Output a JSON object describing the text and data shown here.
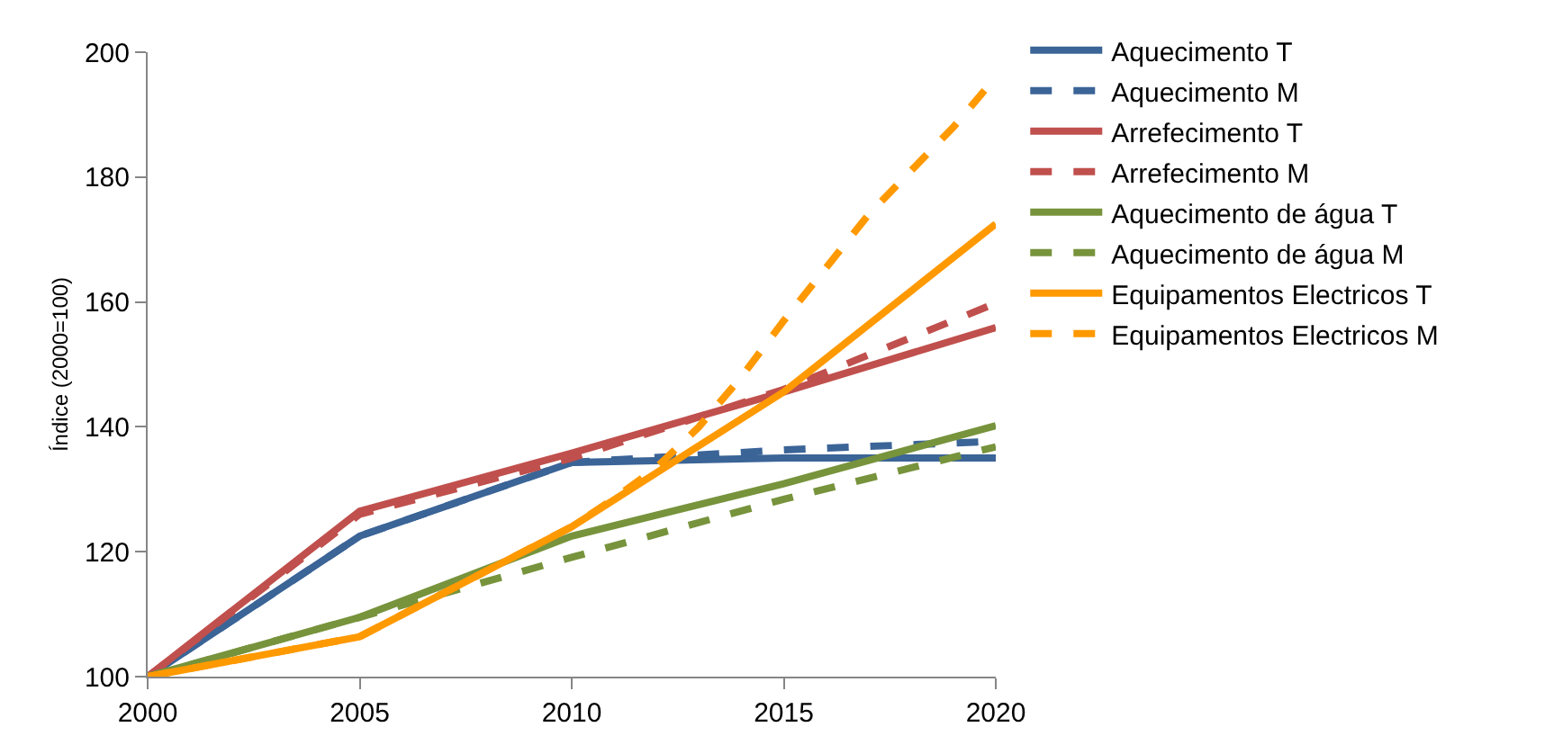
{
  "chart_data": {
    "type": "line",
    "ylabel": "Índice (2000=100)",
    "xlim": [
      2000,
      2020
    ],
    "xticks": [
      2000,
      2005,
      2010,
      2015,
      2020
    ],
    "ylim": [
      100,
      200
    ],
    "yticks": [
      100,
      120,
      140,
      160,
      180,
      200
    ],
    "grid": false,
    "legend": "right",
    "marker": "none",
    "series": [
      {
        "name": "Aquecimento T",
        "color": "#3b6497",
        "line_style": "solid",
        "x": [
          2000,
          2005,
          2010,
          2015,
          2020
        ],
        "values": [
          100,
          122.5,
          134.3,
          135,
          135
        ]
      },
      {
        "name": "Aquecimento M",
        "color": "#3b6497",
        "line_style": "dashed",
        "x": [
          2000,
          2005,
          2010,
          2015,
          2020
        ],
        "values": [
          100,
          122.5,
          134.3,
          136.3,
          137.7
        ]
      },
      {
        "name": "Arrefecimento T",
        "color": "#c0504d",
        "line_style": "solid",
        "x": [
          2000,
          2005,
          2010,
          2015,
          2020
        ],
        "values": [
          100,
          126.5,
          135.8,
          145.6,
          155.9
        ]
      },
      {
        "name": "Arrefecimento M",
        "color": "#c0504d",
        "line_style": "dashed",
        "x": [
          2000,
          2005,
          2010,
          2015,
          2020
        ],
        "values": [
          100,
          126,
          135,
          146,
          159.8
        ]
      },
      {
        "name": "Aquecimento de água T",
        "color": "#77933c",
        "line_style": "solid",
        "x": [
          2000,
          2005,
          2010,
          2015,
          2020
        ],
        "values": [
          100,
          109.5,
          122.5,
          130.9,
          140.2
        ]
      },
      {
        "name": "Aquecimento de água M",
        "color": "#77933c",
        "line_style": "dashed",
        "x": [
          2000,
          2005,
          2010,
          2015,
          2020
        ],
        "values": [
          100,
          109.5,
          119.1,
          128.4,
          136.8
        ]
      },
      {
        "name": "Equipamentos Electricos T",
        "color": "#ff9900",
        "line_style": "solid",
        "x": [
          2000,
          2005,
          2010,
          2015,
          2020
        ],
        "values": [
          100,
          106.4,
          124,
          145.6,
          172.5
        ]
      },
      {
        "name": "Equipamentos Electricos M",
        "color": "#ff9900",
        "line_style": "dashed",
        "x": [
          2000,
          2005,
          2010,
          2011,
          2012,
          2013,
          2014,
          2015,
          2016,
          2017,
          2018,
          2019,
          2020
        ],
        "values": [
          100,
          106.4,
          124,
          128.5,
          133.5,
          140,
          148,
          157,
          165.5,
          174,
          181,
          188,
          196
        ]
      }
    ]
  }
}
